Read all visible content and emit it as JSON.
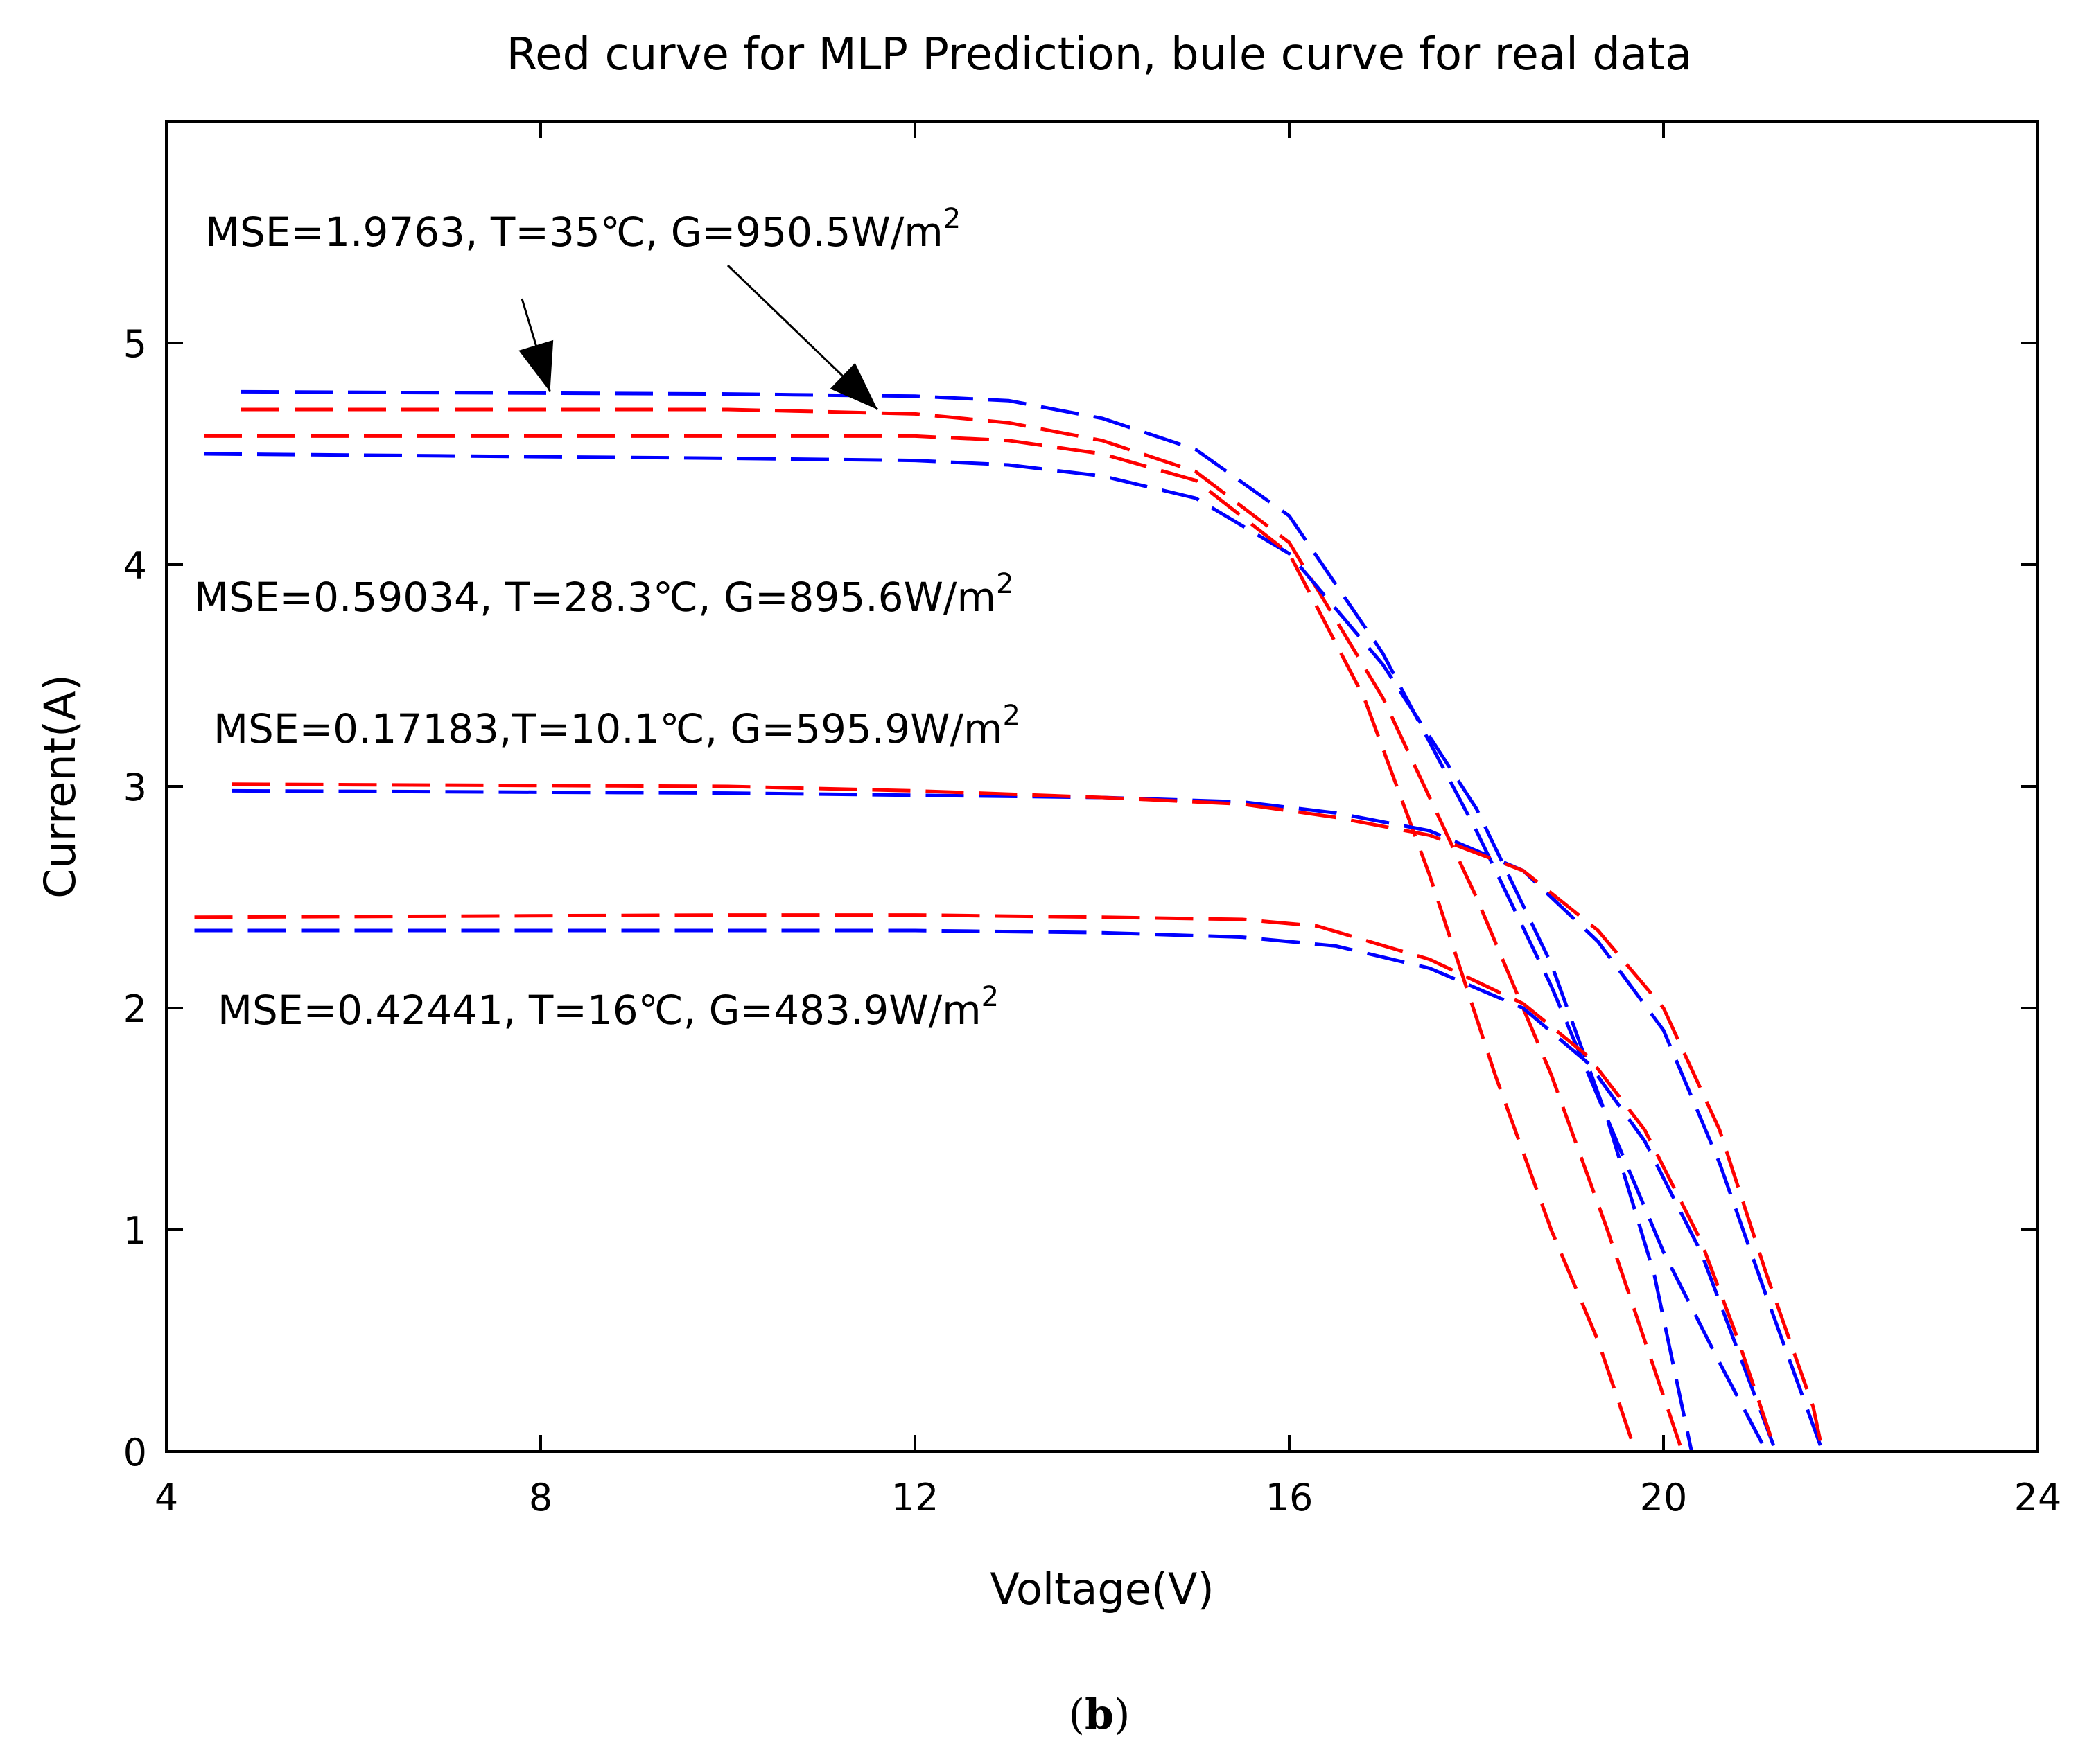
{
  "panel_label": {
    "open": "(",
    "letter": "b",
    "close": ")"
  },
  "chart_data": {
    "type": "line",
    "title": "Red curve for MLP Prediction, bule curve for real data",
    "xlabel": "Voltage(V)",
    "ylabel": "Current(A)",
    "xlim": [
      4,
      24
    ],
    "ylim": [
      0,
      6
    ],
    "xticks": [
      4,
      8,
      12,
      16,
      20,
      24
    ],
    "yticks": [
      0,
      1,
      2,
      3,
      4,
      5
    ],
    "grid": false,
    "colors": {
      "predicted": "#ff0000",
      "real": "#0000ff"
    },
    "groups": [
      {
        "label": "MSE=1.9763, T=35℃, G=950.5W/m",
        "label_sup": "2",
        "series": [
          {
            "name": "real",
            "points": [
              [
                4.8,
                4.78
              ],
              [
                10,
                4.77
              ],
              [
                12,
                4.76
              ],
              [
                13,
                4.74
              ],
              [
                14,
                4.66
              ],
              [
                15,
                4.52
              ],
              [
                16,
                4.22
              ],
              [
                17,
                3.6
              ],
              [
                18,
                2.8
              ],
              [
                18.8,
                2.1
              ],
              [
                19.4,
                1.5
              ],
              [
                20,
                0.9
              ],
              [
                20.6,
                0.4
              ],
              [
                21.1,
                0.0
              ]
            ]
          },
          {
            "name": "predicted",
            "points": [
              [
                4.8,
                4.7
              ],
              [
                10,
                4.7
              ],
              [
                12,
                4.68
              ],
              [
                13,
                4.64
              ],
              [
                14,
                4.56
              ],
              [
                15,
                4.42
              ],
              [
                16,
                4.1
              ],
              [
                17,
                3.4
              ],
              [
                18,
                2.5
              ],
              [
                18.8,
                1.7
              ],
              [
                19.4,
                1.0
              ],
              [
                19.8,
                0.5
              ],
              [
                20.2,
                0.0
              ]
            ]
          }
        ]
      },
      {
        "label": "MSE=0.59034, T=28.3℃, G=895.6W/m",
        "label_sup": "2",
        "series": [
          {
            "name": "real",
            "points": [
              [
                4.4,
                4.5
              ],
              [
                10,
                4.48
              ],
              [
                12,
                4.47
              ],
              [
                13,
                4.45
              ],
              [
                14,
                4.4
              ],
              [
                15,
                4.3
              ],
              [
                16,
                4.05
              ],
              [
                17,
                3.55
              ],
              [
                18,
                2.9
              ],
              [
                18.8,
                2.2
              ],
              [
                19.4,
                1.5
              ],
              [
                19.9,
                0.8
              ],
              [
                20.3,
                0.0
              ]
            ]
          },
          {
            "name": "predicted",
            "points": [
              [
                4.4,
                4.58
              ],
              [
                10,
                4.58
              ],
              [
                12,
                4.58
              ],
              [
                13,
                4.56
              ],
              [
                14,
                4.5
              ],
              [
                15,
                4.38
              ],
              [
                16,
                4.05
              ],
              [
                16.8,
                3.4
              ],
              [
                17.5,
                2.6
              ],
              [
                18.2,
                1.7
              ],
              [
                18.8,
                1.0
              ],
              [
                19.3,
                0.5
              ],
              [
                19.7,
                0.0
              ]
            ]
          }
        ]
      },
      {
        "label": "MSE=0.17183,T=10.1℃, G=595.9W/m",
        "label_sup": "2",
        "series": [
          {
            "name": "real",
            "points": [
              [
                4.7,
                2.98
              ],
              [
                10,
                2.97
              ],
              [
                12,
                2.96
              ],
              [
                14,
                2.95
              ],
              [
                15.5,
                2.93
              ],
              [
                16.5,
                2.88
              ],
              [
                17.5,
                2.8
              ],
              [
                18.5,
                2.62
              ],
              [
                19.3,
                2.3
              ],
              [
                20,
                1.9
              ],
              [
                20.6,
                1.3
              ],
              [
                21.1,
                0.7
              ],
              [
                21.7,
                0.0
              ]
            ]
          },
          {
            "name": "predicted",
            "points": [
              [
                4.7,
                3.01
              ],
              [
                10,
                3.0
              ],
              [
                12,
                2.98
              ],
              [
                14,
                2.95
              ],
              [
                15.5,
                2.92
              ],
              [
                16.5,
                2.86
              ],
              [
                17.5,
                2.78
              ],
              [
                18.5,
                2.62
              ],
              [
                19.3,
                2.35
              ],
              [
                20,
                2.0
              ],
              [
                20.6,
                1.45
              ],
              [
                21.1,
                0.8
              ],
              [
                21.6,
                0.2
              ],
              [
                21.7,
                0.0
              ]
            ]
          }
        ]
      },
      {
        "label": "MSE=0.42441, T=16℃, G=483.9W/m",
        "label_sup": "2",
        "series": [
          {
            "name": "real",
            "points": [
              [
                4.3,
                2.35
              ],
              [
                10,
                2.35
              ],
              [
                12,
                2.35
              ],
              [
                14,
                2.34
              ],
              [
                15.5,
                2.32
              ],
              [
                16.5,
                2.28
              ],
              [
                17.5,
                2.18
              ],
              [
                18.5,
                2.0
              ],
              [
                19.2,
                1.75
              ],
              [
                19.8,
                1.4
              ],
              [
                20.4,
                0.9
              ],
              [
                20.8,
                0.45
              ],
              [
                21.2,
                0.0
              ]
            ]
          },
          {
            "name": "predicted",
            "points": [
              [
                4.3,
                2.41
              ],
              [
                10,
                2.42
              ],
              [
                12,
                2.42
              ],
              [
                14,
                2.41
              ],
              [
                15.5,
                2.4
              ],
              [
                16.3,
                2.37
              ],
              [
                17.5,
                2.22
              ],
              [
                18.5,
                2.02
              ],
              [
                19.2,
                1.78
              ],
              [
                19.8,
                1.45
              ],
              [
                20.4,
                0.95
              ],
              [
                20.8,
                0.5
              ],
              [
                21.2,
                0.0
              ]
            ]
          }
        ]
      }
    ],
    "arrows": [
      {
        "from": [
          7.8,
          5.2
        ],
        "to": [
          8.1,
          4.78
        ],
        "group": 0
      },
      {
        "from": [
          10.0,
          5.35
        ],
        "to": [
          11.6,
          4.7
        ],
        "group": 0
      }
    ]
  }
}
